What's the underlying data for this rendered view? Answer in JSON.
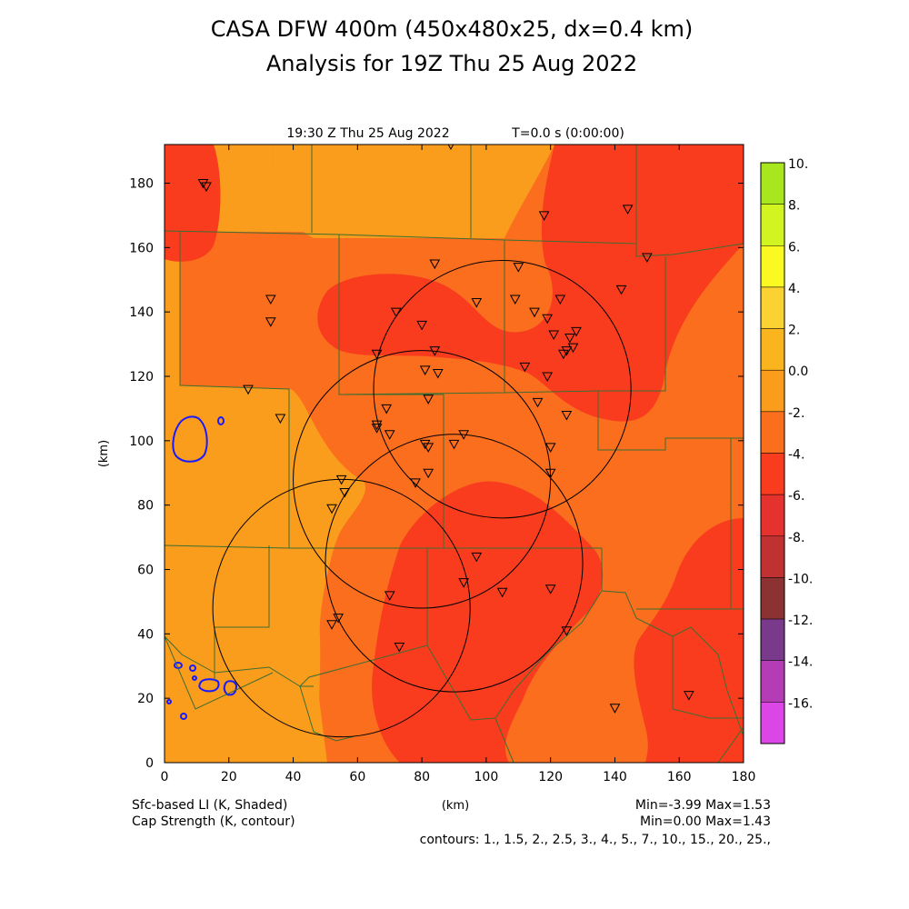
{
  "title": {
    "line1": "CASA DFW 400m (450x480x25, dx=0.4 km)",
    "line2": "Analysis for 19Z Thu 25 Aug 2022"
  },
  "subtitle": {
    "time": "19:30 Z Thu 25 Aug 2022",
    "elapsed": "T=0.0 s (0:00:00)"
  },
  "axes": {
    "xlabel": "(km)",
    "ylabel": "(km)",
    "xlim": [
      0,
      180
    ],
    "ylim": [
      0,
      192
    ],
    "xticks": [
      "0",
      "20",
      "40",
      "60",
      "80",
      "100",
      "120",
      "140",
      "160",
      "180"
    ],
    "yticks": [
      "0",
      "20",
      "40",
      "60",
      "80",
      "100",
      "120",
      "140",
      "160",
      "180"
    ]
  },
  "colorbar": {
    "labels": [
      "10.",
      "8.",
      "6.",
      "4.",
      "2.",
      "0.0",
      "-2.",
      "-4.",
      "-6.",
      "-8.",
      "-10.",
      "-12.",
      "-14.",
      "-16."
    ],
    "colors": [
      "#a8e61e",
      "#d2f522",
      "#fafa22",
      "#fad232",
      "#fab41e",
      "#fa9c1c",
      "#fa6e1e",
      "#fa3c1e",
      "#e6322e",
      "#c03232",
      "#8c3232",
      "#7a3a8c",
      "#b43cb4",
      "#dc46e6"
    ]
  },
  "footer": {
    "field1": "Sfc-based LI (K, Shaded)",
    "field2": "Cap Strength (K, contour)",
    "xunit": "(km)",
    "stats1": "Min=-3.99 Max=1.53",
    "stats2": "Min=0.00 Max=1.43",
    "contours": "contours: 1., 1.5, 2., 2.5, 3., 4., 5., 7., 10., 15., 20., 25.,"
  },
  "radars": [
    {
      "x": 105,
      "y": 116,
      "r_km": 40
    },
    {
      "x": 80,
      "y": 88,
      "r_km": 40
    },
    {
      "x": 55,
      "y": 48,
      "r_km": 40
    },
    {
      "x": 90,
      "y": 62,
      "r_km": 40
    }
  ],
  "stations": [
    [
      12,
      180
    ],
    [
      13,
      179
    ],
    [
      89,
      192
    ],
    [
      118,
      170
    ],
    [
      144,
      172
    ],
    [
      150,
      157
    ],
    [
      84,
      155
    ],
    [
      110,
      154
    ],
    [
      33,
      144
    ],
    [
      33,
      137
    ],
    [
      97,
      143
    ],
    [
      109,
      144
    ],
    [
      123,
      144
    ],
    [
      142,
      147
    ],
    [
      72,
      140
    ],
    [
      80,
      136
    ],
    [
      115,
      140
    ],
    [
      119,
      138
    ],
    [
      121,
      133
    ],
    [
      126,
      132
    ],
    [
      128,
      134
    ],
    [
      127,
      129
    ],
    [
      125,
      128
    ],
    [
      124,
      127
    ],
    [
      84,
      128
    ],
    [
      66,
      127
    ],
    [
      81,
      122
    ],
    [
      85,
      121
    ],
    [
      112,
      123
    ],
    [
      119,
      120
    ],
    [
      26,
      116
    ],
    [
      82,
      113
    ],
    [
      116,
      112
    ],
    [
      125,
      108
    ],
    [
      36,
      107
    ],
    [
      69,
      110
    ],
    [
      66,
      105
    ],
    [
      66,
      104
    ],
    [
      70,
      102
    ],
    [
      93,
      102
    ],
    [
      81,
      99
    ],
    [
      82,
      98
    ],
    [
      90,
      99
    ],
    [
      120,
      98
    ],
    [
      55,
      88
    ],
    [
      82,
      90
    ],
    [
      78,
      87
    ],
    [
      120,
      90
    ],
    [
      56,
      84
    ],
    [
      52,
      79
    ],
    [
      97,
      64
    ],
    [
      93,
      56
    ],
    [
      105,
      53
    ],
    [
      120,
      54
    ],
    [
      70,
      52
    ],
    [
      54,
      45
    ],
    [
      52,
      43
    ],
    [
      125,
      41
    ],
    [
      73,
      36
    ],
    [
      140,
      17
    ],
    [
      163,
      21
    ]
  ]
}
